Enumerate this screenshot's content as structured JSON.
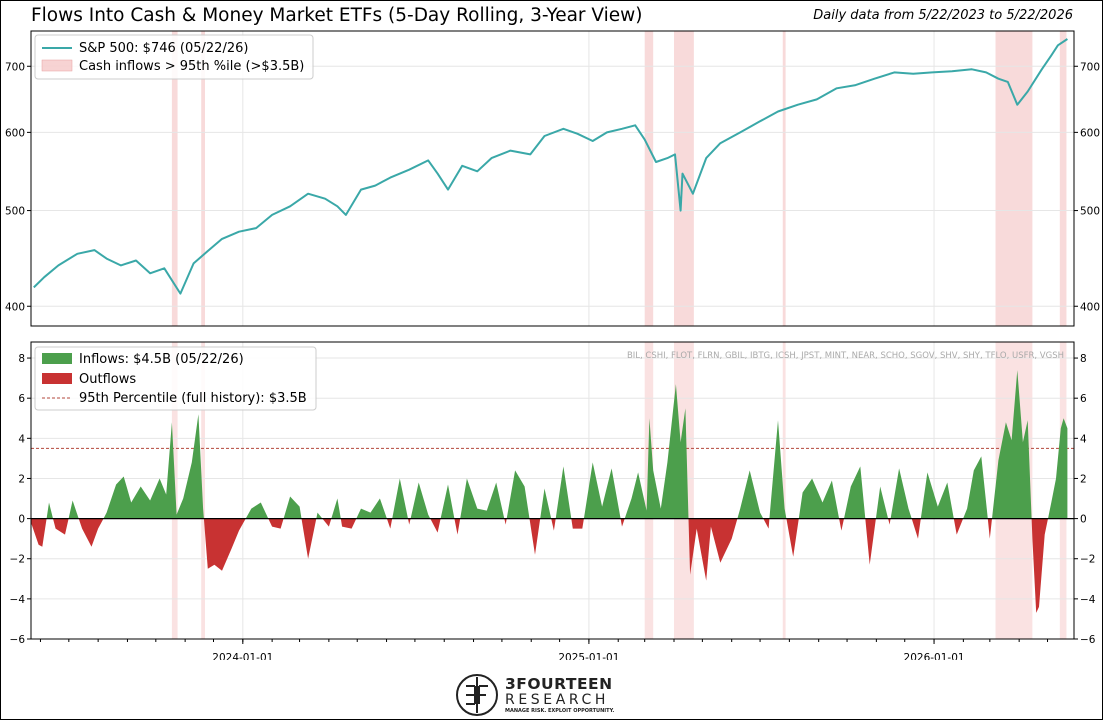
{
  "header": {
    "title": "Flows Into Cash & Money Market ETFs (5-Day Rolling, 3-Year View)",
    "subtitle": "Daily data from 5/22/2023 to 5/22/2026"
  },
  "colors": {
    "sp500_line": "#3aa8a8",
    "inflow": "#4c9f4c",
    "outflow": "#c83232",
    "shade": "#f2b6b6",
    "threshold": "#b4473c"
  },
  "tickers_note": "BIL, CSHI, FLOT, FLRN, GBIL, IBTG, ICSH, JPST, MINT, NEAR, SCHO, SGOV, SHV, SHY, TFLO, USFR, VGSH",
  "logo": {
    "word1": "3FOURTEEN",
    "word2": "RESEARCH",
    "tagline": "MANAGE RISK. EXPLOIT OPPORTUNITY."
  },
  "chart_data": [
    {
      "type": "line",
      "legend": [
        "S&P 500: $746 (05/22/26)",
        "Cash inflows > 95th %ile (>$3.5B)"
      ],
      "y_scale": "log",
      "ylim": [
        382,
        760
      ],
      "yticks": [
        400,
        500,
        600,
        700
      ],
      "xticks": [
        "2024-01-01",
        "2025-01-01",
        "2026-01-01"
      ],
      "x_range": [
        "2023-05-22",
        "2026-05-29"
      ],
      "series": [
        {
          "name": "S&P 500: $746 (05/22/26)",
          "x": [
            "2023-05-25",
            "2023-06-05",
            "2023-06-20",
            "2023-07-10",
            "2023-07-28",
            "2023-08-10",
            "2023-08-25",
            "2023-09-10",
            "2023-09-25",
            "2023-10-10",
            "2023-10-27",
            "2023-11-10",
            "2023-11-25",
            "2023-12-10",
            "2023-12-28",
            "2024-01-15",
            "2024-02-01",
            "2024-02-20",
            "2024-03-10",
            "2024-03-28",
            "2024-04-10",
            "2024-04-19",
            "2024-05-05",
            "2024-05-20",
            "2024-06-05",
            "2024-06-25",
            "2024-07-15",
            "2024-07-25",
            "2024-08-05",
            "2024-08-20",
            "2024-09-05",
            "2024-09-20",
            "2024-10-10",
            "2024-10-31",
            "2024-11-15",
            "2024-12-05",
            "2024-12-20",
            "2025-01-05",
            "2025-01-20",
            "2025-02-05",
            "2025-02-19",
            "2025-03-01",
            "2025-03-13",
            "2025-03-25",
            "2025-04-02",
            "2025-04-08",
            "2025-04-10",
            "2025-04-21",
            "2025-05-05",
            "2025-05-20",
            "2025-06-10",
            "2025-06-30",
            "2025-07-20",
            "2025-08-10",
            "2025-08-30",
            "2025-09-20",
            "2025-10-10",
            "2025-10-30",
            "2025-11-20",
            "2025-12-10",
            "2025-12-30",
            "2026-01-20",
            "2026-02-10",
            "2026-02-25",
            "2026-03-10",
            "2026-03-20",
            "2026-03-30",
            "2026-04-10",
            "2026-04-25",
            "2026-05-05",
            "2026-05-12",
            "2026-05-22"
          ],
          "values": [
            418,
            428,
            440,
            452,
            456,
            447,
            440,
            445,
            432,
            437,
            412,
            442,
            455,
            468,
            476,
            480,
            495,
            505,
            520,
            514,
            505,
            495,
            525,
            530,
            540,
            550,
            562,
            545,
            525,
            555,
            548,
            565,
            575,
            570,
            595,
            605,
            598,
            588,
            600,
            605,
            610,
            590,
            560,
            565,
            570,
            500,
            545,
            520,
            565,
            585,
            600,
            615,
            630,
            640,
            648,
            665,
            670,
            680,
            690,
            688,
            690,
            692,
            695,
            690,
            680,
            675,
            640,
            660,
            695,
            718,
            735,
            746
          ]
        }
      ],
      "shaded_regions": [
        [
          "2023-10-18",
          "2023-10-24"
        ],
        [
          "2023-11-18",
          "2023-11-22"
        ],
        [
          "2025-03-01",
          "2025-03-10"
        ],
        [
          "2025-04-01",
          "2025-04-22"
        ],
        [
          "2025-07-25",
          "2025-07-28"
        ],
        [
          "2026-03-07",
          "2026-04-15"
        ],
        [
          "2026-05-14",
          "2026-05-21"
        ]
      ]
    },
    {
      "type": "area",
      "legend": [
        "Inflows: $4.5B (05/22/26)",
        "Outflows",
        "95th Percentile (full history): $3.5B"
      ],
      "ylim": [
        -6,
        8.8
      ],
      "yticks": [
        -6,
        -4,
        -2,
        0,
        2,
        4,
        6,
        8
      ],
      "threshold": 3.5,
      "xticks": [
        "2024-01-01",
        "2025-01-01",
        "2026-01-01"
      ],
      "x_range": [
        "2023-05-22",
        "2026-05-29"
      ],
      "series": [
        {
          "name": "Inflows / Outflows",
          "x": [
            "2023-05-22",
            "2023-05-30",
            "2023-06-03",
            "2023-06-10",
            "2023-06-17",
            "2023-06-27",
            "2023-07-05",
            "2023-07-15",
            "2023-07-25",
            "2023-08-01",
            "2023-08-10",
            "2023-08-20",
            "2023-08-28",
            "2023-09-05",
            "2023-09-15",
            "2023-09-25",
            "2023-10-05",
            "2023-10-12",
            "2023-10-18",
            "2023-10-23",
            "2023-10-30",
            "2023-11-08",
            "2023-11-15",
            "2023-11-20",
            "2023-11-25",
            "2023-12-02",
            "2023-12-10",
            "2023-12-20",
            "2023-12-28",
            "2024-01-10",
            "2024-01-20",
            "2024-02-01",
            "2024-02-10",
            "2024-02-20",
            "2024-03-01",
            "2024-03-10",
            "2024-03-20",
            "2024-04-01",
            "2024-04-10",
            "2024-04-15",
            "2024-04-25",
            "2024-05-05",
            "2024-05-15",
            "2024-05-25",
            "2024-06-05",
            "2024-06-15",
            "2024-06-25",
            "2024-07-05",
            "2024-07-15",
            "2024-07-25",
            "2024-08-05",
            "2024-08-15",
            "2024-08-25",
            "2024-09-05",
            "2024-09-15",
            "2024-09-25",
            "2024-10-05",
            "2024-10-15",
            "2024-10-25",
            "2024-11-05",
            "2024-11-15",
            "2024-11-25",
            "2024-12-05",
            "2024-12-15",
            "2024-12-25",
            "2025-01-05",
            "2025-01-15",
            "2025-01-25",
            "2025-02-05",
            "2025-02-15",
            "2025-02-22",
            "2025-03-03",
            "2025-03-06",
            "2025-03-10",
            "2025-03-18",
            "2025-03-25",
            "2025-04-03",
            "2025-04-08",
            "2025-04-13",
            "2025-04-18",
            "2025-04-25",
            "2025-05-05",
            "2025-05-10",
            "2025-05-20",
            "2025-06-01",
            "2025-06-10",
            "2025-06-20",
            "2025-07-01",
            "2025-07-10",
            "2025-07-20",
            "2025-07-27",
            "2025-08-05",
            "2025-08-15",
            "2025-08-25",
            "2025-09-05",
            "2025-09-15",
            "2025-09-25",
            "2025-10-05",
            "2025-10-15",
            "2025-10-25",
            "2025-11-05",
            "2025-11-15",
            "2025-11-25",
            "2025-12-05",
            "2025-12-15",
            "2025-12-25",
            "2026-01-05",
            "2026-01-15",
            "2026-01-25",
            "2026-02-05",
            "2026-02-12",
            "2026-02-20",
            "2026-03-01",
            "2026-03-10",
            "2026-03-18",
            "2026-03-24",
            "2026-03-30",
            "2026-04-05",
            "2026-04-10",
            "2026-04-15",
            "2026-04-19",
            "2026-04-22",
            "2026-04-28",
            "2026-05-05",
            "2026-05-10",
            "2026-05-15",
            "2026-05-18",
            "2026-05-22"
          ],
          "values": [
            -0.2,
            -1.3,
            -1.4,
            0.8,
            -0.5,
            -0.8,
            0.9,
            -0.5,
            -1.4,
            -0.5,
            0.3,
            1.7,
            2.1,
            0.8,
            1.6,
            0.9,
            2.0,
            1.2,
            4.8,
            0.2,
            1.0,
            2.8,
            5.2,
            0.5,
            -2.5,
            -2.3,
            -2.6,
            -1.5,
            -0.6,
            0.5,
            0.8,
            -0.4,
            -0.5,
            1.1,
            0.6,
            -2.0,
            0.3,
            -0.4,
            1.0,
            -0.4,
            -0.5,
            0.5,
            0.3,
            1.0,
            -0.5,
            2.0,
            -0.3,
            1.8,
            0.2,
            -0.7,
            1.7,
            -0.8,
            2.0,
            0.5,
            0.4,
            1.8,
            -0.3,
            2.4,
            1.6,
            -1.8,
            1.5,
            -0.6,
            2.6,
            -0.5,
            -0.5,
            2.8,
            0.6,
            2.5,
            -0.4,
            1.0,
            2.3,
            0.4,
            5.0,
            2.4,
            0.5,
            2.8,
            6.7,
            3.8,
            5.5,
            -2.8,
            -0.5,
            -3.1,
            -0.4,
            -2.2,
            -1.0,
            0.5,
            2.4,
            0.3,
            -0.5,
            4.9,
            0.5,
            -1.9,
            1.3,
            2.0,
            0.8,
            1.9,
            -0.6,
            1.6,
            2.6,
            -2.3,
            1.6,
            -0.3,
            2.5,
            0.5,
            -1.0,
            2.3,
            0.6,
            1.8,
            -0.8,
            0.5,
            2.4,
            3.1,
            -1.0,
            2.9,
            4.8,
            3.9,
            7.4,
            3.8,
            4.9,
            -1.0,
            -4.7,
            -4.4,
            -0.8,
            0.8,
            2.0,
            4.5,
            5.0,
            4.5
          ]
        }
      ],
      "shaded_regions": [
        [
          "2023-10-18",
          "2023-10-24"
        ],
        [
          "2023-11-18",
          "2023-11-22"
        ],
        [
          "2025-03-01",
          "2025-03-10"
        ],
        [
          "2025-04-01",
          "2025-04-22"
        ],
        [
          "2025-07-25",
          "2025-07-28"
        ],
        [
          "2026-03-07",
          "2026-04-15"
        ],
        [
          "2026-05-14",
          "2026-05-21"
        ]
      ]
    }
  ]
}
